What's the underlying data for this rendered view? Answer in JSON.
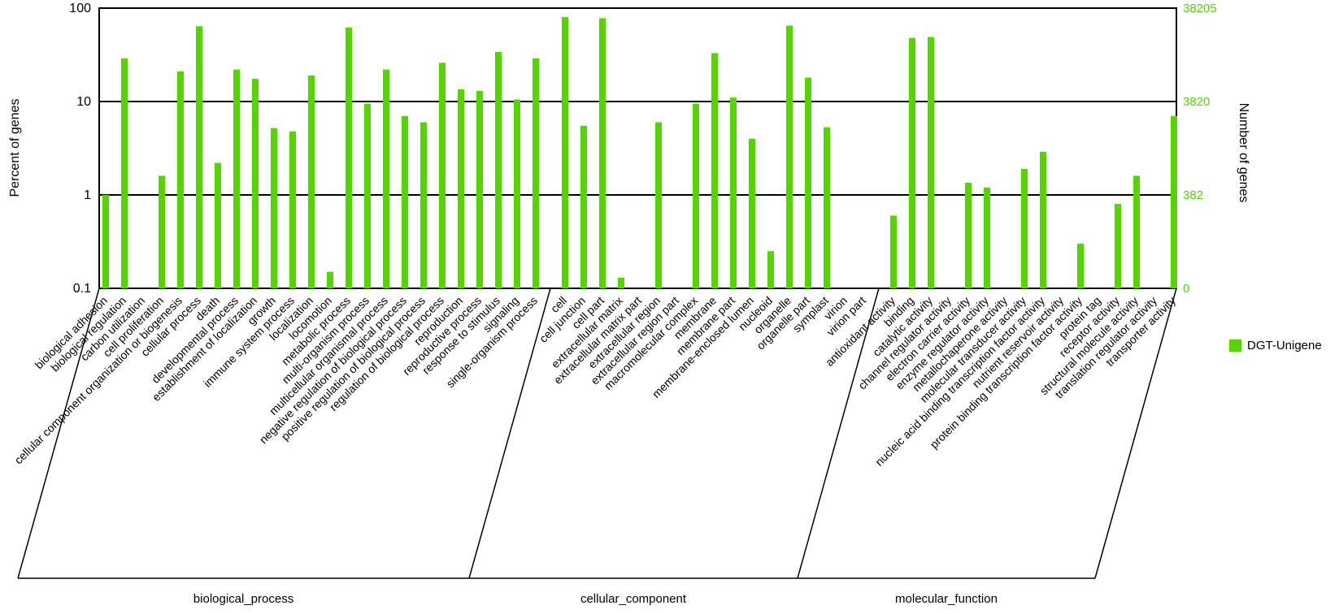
{
  "chart_data": {
    "type": "bar",
    "title": "",
    "bar_color": "#55d400",
    "axis_color": "#000000",
    "left_axis": {
      "label": "Percent of genes",
      "scale": "log",
      "range": [
        0.1,
        100
      ],
      "ticks": [
        "100",
        "10",
        "1",
        "0.1"
      ]
    },
    "right_axis": {
      "label": "Number of genes",
      "ticks": [
        "38205",
        "3820",
        "382",
        "0"
      ]
    },
    "legend": [
      {
        "label": "DGT-Unigene",
        "color": "#55d400"
      }
    ],
    "groups": [
      {
        "name": "biological_process",
        "categories": [
          "biological adhesion",
          "biological regulation",
          "carbon utilization",
          "cell proliferation",
          "cellular component organization or biogenesis",
          "cellular process",
          "death",
          "developmental process",
          "establishment of localization",
          "growth",
          "immune system process",
          "localization",
          "locomotion",
          "metabolic process",
          "multi-organism process",
          "multicellular organismal process",
          "negative regulation of biological process",
          "positive regulation of biological process",
          "regulation of biological process",
          "reproduction",
          "reproductive process",
          "response to stimulus",
          "signaling",
          "single-organism process"
        ],
        "values": [
          1.0,
          29,
          0,
          1.6,
          21,
          64,
          2.2,
          22,
          17.5,
          5.2,
          4.8,
          19,
          0.15,
          62,
          9.5,
          22,
          7,
          6,
          26,
          13.5,
          13,
          34,
          10.5,
          29
        ]
      },
      {
        "name": "cellular_component",
        "categories": [
          "cell",
          "cell junction",
          "cell part",
          "extracellular matrix",
          "extracellular matrix part",
          "extracellular region",
          "extracellular region part",
          "macromolecular complex",
          "membrane",
          "membrane part",
          "membrane-enclosed lumen",
          "nucleoid",
          "organelle",
          "organelle part",
          "symplast",
          "virion",
          "virion part"
        ],
        "values": [
          80,
          5.5,
          78,
          0.13,
          0,
          6,
          0,
          9.5,
          33,
          11,
          4,
          0.25,
          65,
          18,
          5.3,
          0,
          0
        ]
      },
      {
        "name": "molecular_function",
        "categories": [
          "antioxidant activity",
          "binding",
          "catalytic activity",
          "channel regulator activity",
          "electron carrier activity",
          "enzyme regulator activity",
          "metallochaperone activity",
          "molecular transducer activity",
          "nucleic acid binding transcription factor activity",
          "nutrient reservoir activity",
          "protein binding transcription factor activity",
          "protein tag",
          "receptor activity",
          "structural molecule activity",
          "translation regulator activity",
          "transporter activity"
        ],
        "values": [
          0.6,
          48,
          49,
          0,
          1.35,
          1.2,
          0,
          1.9,
          2.9,
          0,
          0.3,
          0,
          0.8,
          1.6,
          0,
          7
        ]
      }
    ]
  }
}
